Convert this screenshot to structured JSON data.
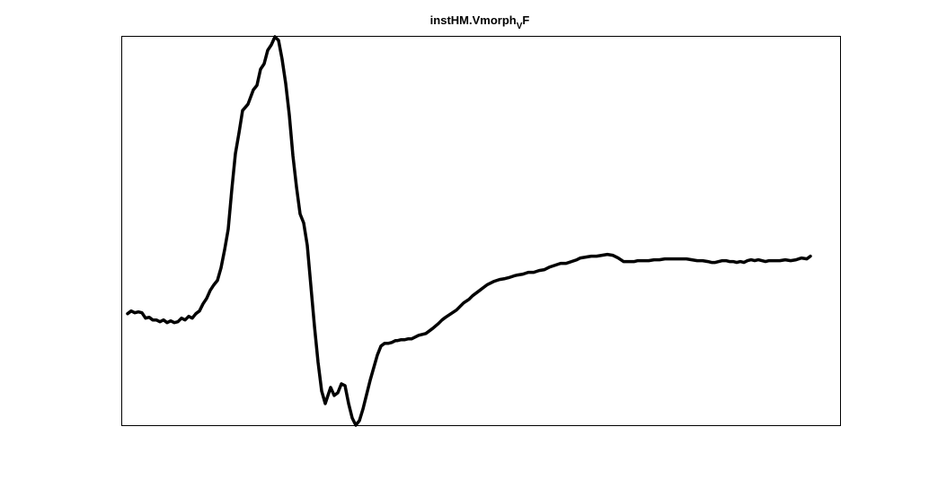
{
  "chart_data": {
    "type": "line",
    "title_main": "instHM.Vmorph",
    "title_subscript": "V",
    "title_suffix": "F",
    "xlabel": "",
    "ylabel": "",
    "axes_visible": false,
    "grid": false,
    "line_color": "#000000",
    "xlim": [
      0,
      800
    ],
    "ylim": [
      0,
      432
    ],
    "series": [
      {
        "x": [
          6,
          10,
          14,
          18,
          22,
          26,
          30,
          34,
          38,
          42,
          46,
          50,
          54,
          58,
          62,
          66,
          70,
          74,
          78,
          82,
          86,
          90,
          94,
          98,
          102,
          106,
          110,
          114,
          118,
          122,
          126,
          130,
          134,
          140,
          146,
          150,
          154,
          158,
          162,
          166,
          170,
          174,
          178,
          182,
          186,
          190,
          194,
          198,
          202,
          206,
          210,
          214,
          218,
          222,
          226,
          232,
          236,
          240,
          244,
          248,
          252,
          256,
          260,
          264,
          268,
          272,
          276,
          280,
          284,
          288,
          292,
          296,
          300,
          302,
          304,
          306,
          310,
          314,
          318,
          322,
          326,
          330,
          334,
          338,
          342,
          346,
          352,
          356,
          360,
          366,
          372,
          376,
          380,
          386,
          390,
          394,
          398,
          402,
          406,
          410,
          414,
          420,
          426,
          430,
          436,
          440,
          446,
          452,
          458,
          464,
          470,
          476,
          482,
          488,
          494,
          500,
          506,
          510,
          516,
          522,
          528,
          534,
          540,
          546,
          552,
          558,
          564,
          570,
          574,
          580,
          586,
          592,
          598,
          604,
          610,
          616,
          622,
          628,
          634,
          640,
          646,
          652,
          656,
          660,
          664,
          668,
          672,
          676,
          680,
          684,
          688,
          692,
          696,
          700,
          704,
          708,
          712,
          716,
          720,
          726,
          732,
          738,
          744,
          750,
          756,
          762,
          766
        ],
        "y": [
          124,
          127,
          125,
          126,
          125,
          119,
          120,
          117,
          117,
          115,
          117,
          114,
          116,
          114,
          115,
          119,
          117,
          121,
          119,
          124,
          127,
          135,
          141,
          150,
          156,
          161,
          175,
          195,
          218,
          262,
          302,
          325,
          350,
          357,
          373,
          378,
          396,
          402,
          417,
          423,
          432,
          428,
          407,
          380,
          345,
          300,
          265,
          235,
          225,
          200,
          155,
          110,
          70,
          38,
          24,
          42,
          33,
          36,
          46,
          44,
          24,
          8,
          0,
          5,
          18,
          34,
          50,
          64,
          78,
          88,
          91,
          91,
          92,
          93,
          94,
          94,
          95,
          95,
          96,
          96,
          98,
          100,
          101,
          102,
          105,
          108,
          113,
          117,
          120,
          124,
          128,
          132,
          136,
          140,
          144,
          147,
          150,
          153,
          156,
          158,
          160,
          162,
          163,
          164,
          166,
          167,
          168,
          170,
          170,
          172,
          173,
          176,
          178,
          180,
          180,
          182,
          184,
          186,
          187,
          188,
          188,
          189,
          190,
          189,
          186,
          182,
          182,
          182,
          183,
          183,
          183,
          184,
          184,
          185,
          185,
          185,
          185,
          185,
          184,
          183,
          183,
          182,
          181,
          181,
          182,
          183,
          183,
          182,
          182,
          181,
          182,
          181,
          183,
          184,
          183,
          184,
          183,
          182,
          183,
          183,
          183,
          184,
          183,
          184,
          186,
          185,
          188
        ]
      }
    ]
  }
}
